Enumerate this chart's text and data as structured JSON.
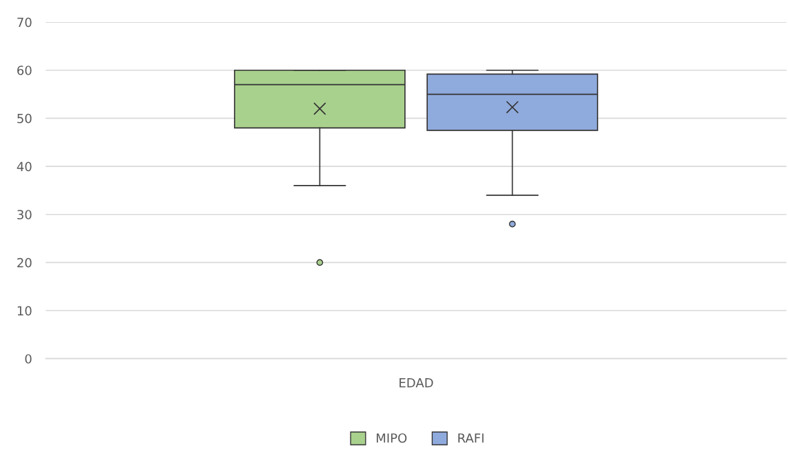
{
  "chart_data": {
    "type": "box",
    "categories": [
      "EDAD"
    ],
    "series": [
      {
        "name": "MIPO",
        "color": "#a9d18e",
        "boxes": [
          {
            "low": 36,
            "q1": 48,
            "median": 57,
            "q3": 60,
            "high": 60,
            "mean": 52,
            "outliers": [
              20
            ]
          }
        ]
      },
      {
        "name": "RAFI",
        "color": "#8faadc",
        "boxes": [
          {
            "low": 34,
            "q1": 47.5,
            "median": 55,
            "q3": 59.2,
            "high": 60,
            "mean": 52.3,
            "outliers": [
              28
            ]
          }
        ]
      }
    ],
    "ylim": [
      0,
      70
    ],
    "yticks": [
      0,
      10,
      20,
      30,
      40,
      50,
      60,
      70
    ],
    "grid": "y",
    "legend": "bottom"
  }
}
